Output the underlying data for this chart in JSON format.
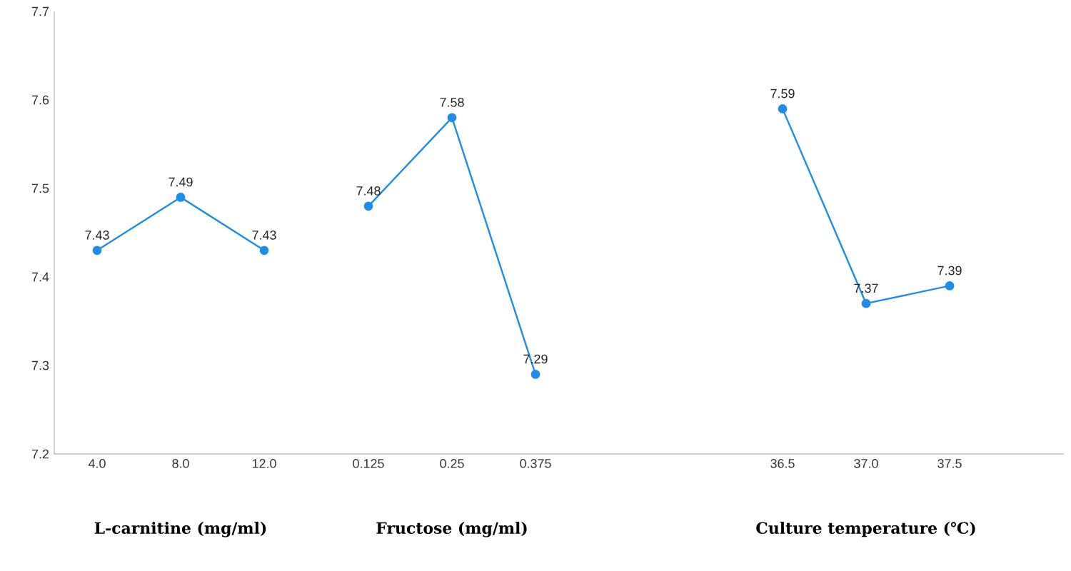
{
  "chart_data": [
    {
      "type": "line",
      "categories": [
        "4.0",
        "8.0",
        "12.0"
      ],
      "values": [
        7.43,
        7.49,
        7.43
      ],
      "color": "#1f8ceb",
      "marker": "circle",
      "data_labels": true,
      "xlabel": "L-carnitine (mg/ml)",
      "ylim": [
        7.2,
        7.7
      ],
      "yticks": [
        7.2,
        7.3,
        7.4,
        7.5,
        7.6,
        7.7
      ]
    },
    {
      "type": "line",
      "categories": [
        "0.125",
        "0.25",
        "0.375"
      ],
      "values": [
        7.48,
        7.58,
        7.29
      ],
      "color": "#1f8ceb",
      "marker": "circle",
      "data_labels": true,
      "xlabel": "Fructose (mg/ml)",
      "ylim": [
        7.2,
        7.7
      ],
      "yticks": [
        7.2,
        7.3,
        7.4,
        7.5,
        7.6,
        7.7
      ],
      "tick_labels": "x"
    },
    {
      "type": "line",
      "categories": [
        "36.5",
        "37.0",
        "37.5"
      ],
      "values": [
        7.59,
        7.37,
        7.39
      ],
      "color": "#1f8ceb",
      "marker": "circle",
      "data_labels": true,
      "xlabel": "Culture temperature (℃)",
      "ylim": [
        7.2,
        7.7
      ],
      "yticks": [
        7.2,
        7.3,
        7.4,
        7.5,
        7.6,
        7.7
      ],
      "tick_labels": "x"
    }
  ]
}
